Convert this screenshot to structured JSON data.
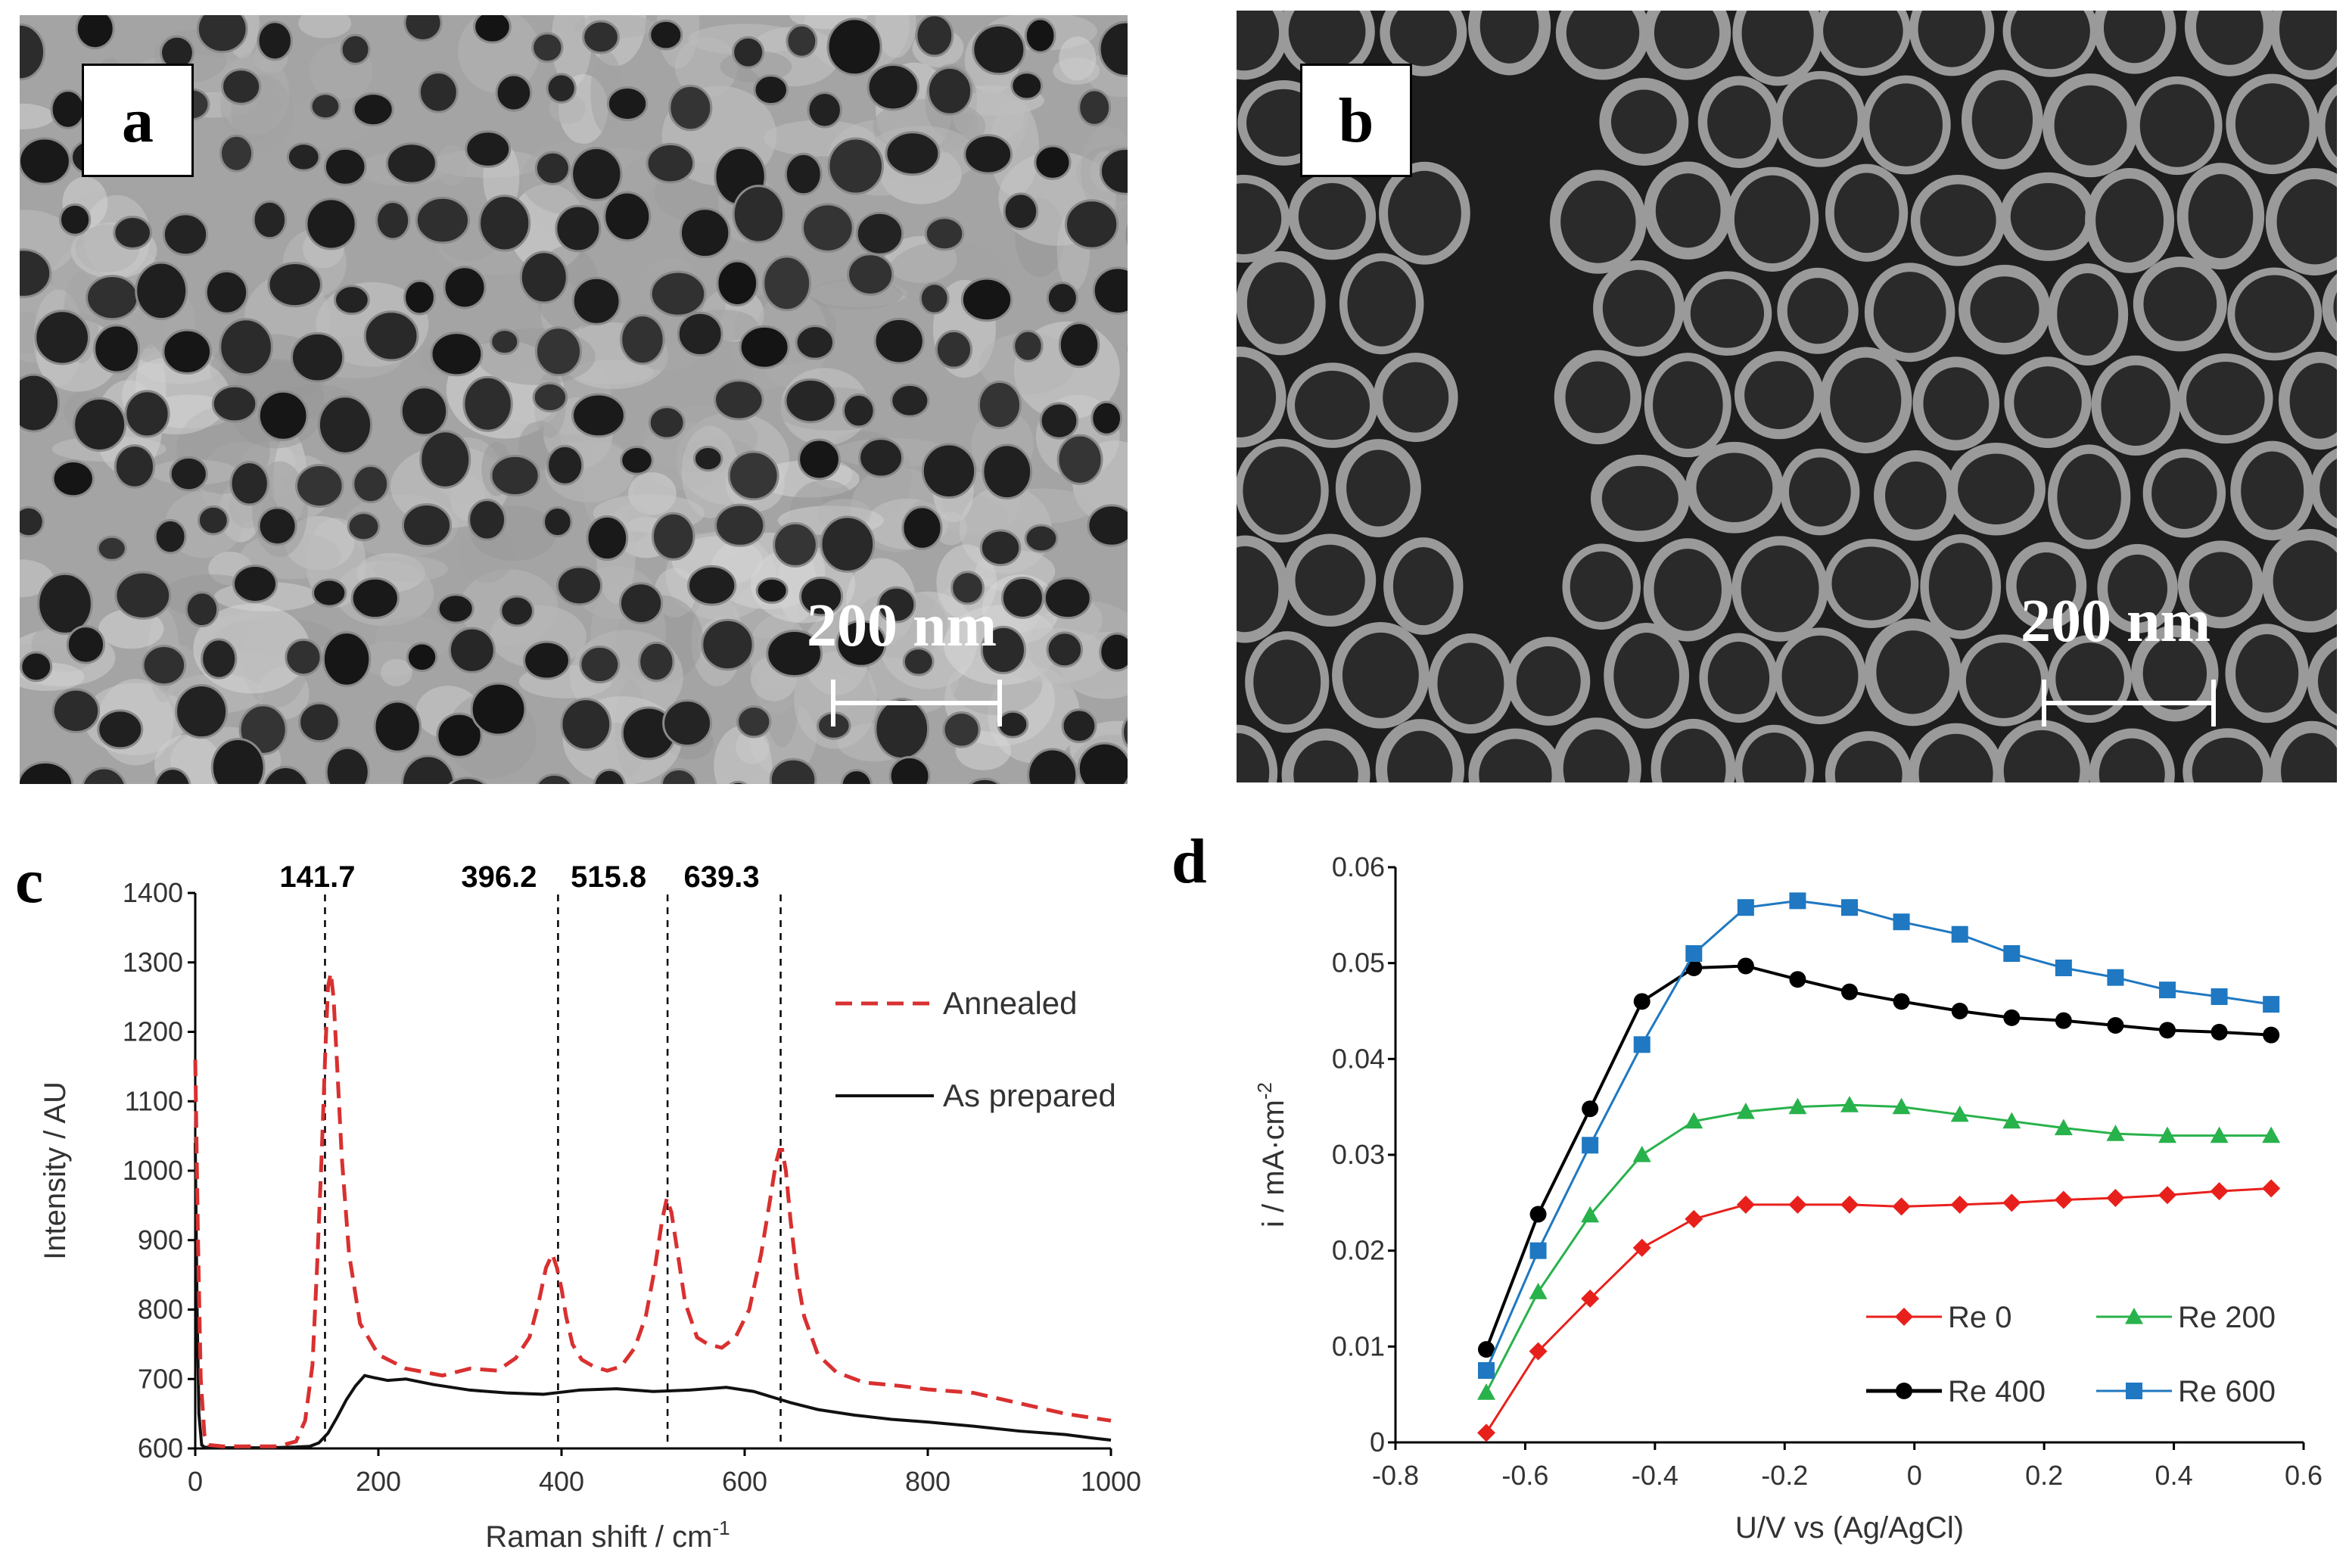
{
  "panels": {
    "a": {
      "label": "a",
      "scale_bar": "200 nm"
    },
    "b": {
      "label": "b",
      "scale_bar": "200 nm"
    },
    "c": {
      "label": "c"
    },
    "d": {
      "label": "d"
    }
  },
  "colors": {
    "annealed": "#d93030",
    "as_prepared": "#111111",
    "re0": "#e8201c",
    "re200": "#28b24b",
    "re400": "#000000",
    "re600": "#1f78c1"
  },
  "chart_data": [
    {
      "type": "line",
      "panel": "c",
      "xlabel": "Raman shift / cm",
      "xlabel_sup": "-1",
      "ylabel": "Intensity  / AU",
      "xlim": [
        0,
        1000
      ],
      "ylim": [
        600,
        1400
      ],
      "xticks": [
        0,
        200,
        400,
        600,
        800,
        1000
      ],
      "yticks": [
        600,
        700,
        800,
        900,
        1000,
        1100,
        1200,
        1300,
        1400
      ],
      "peak_lines": [
        141.7,
        396.2,
        515.8,
        639.3
      ],
      "peak_labels": [
        "141.7",
        "396.2",
        "515.8",
        "639.3"
      ],
      "legend": {
        "position": "top-right"
      },
      "series": [
        {
          "name": "Annealed",
          "style": "dashed",
          "x": [
            0,
            3,
            6,
            10,
            15,
            30,
            60,
            90,
            110,
            120,
            128,
            133,
            138,
            142,
            145,
            148,
            151,
            155,
            160,
            168,
            180,
            200,
            230,
            270,
            300,
            330,
            350,
            365,
            375,
            383,
            390,
            395,
            400,
            405,
            412,
            422,
            435,
            450,
            465,
            480,
            492,
            502,
            510,
            515,
            520,
            527,
            535,
            548,
            560,
            575,
            590,
            605,
            618,
            628,
            634,
            638,
            641,
            645,
            650,
            657,
            665,
            680,
            700,
            730,
            770,
            800,
            850,
            900,
            950,
            1000
          ],
          "y": [
            1160,
            900,
            700,
            620,
            605,
            603,
            603,
            603,
            610,
            640,
            720,
            860,
            1020,
            1170,
            1265,
            1285,
            1250,
            1150,
            1020,
            880,
            780,
            735,
            715,
            705,
            715,
            712,
            730,
            760,
            810,
            860,
            880,
            860,
            830,
            790,
            750,
            728,
            718,
            712,
            718,
            745,
            790,
            860,
            930,
            960,
            940,
            880,
            810,
            760,
            750,
            745,
            760,
            800,
            880,
            960,
            1010,
            1030,
            1030,
            1000,
            930,
            850,
            790,
            735,
            710,
            695,
            690,
            685,
            680,
            665,
            650,
            640
          ]
        },
        {
          "name": "As prepared",
          "style": "solid",
          "x": [
            0,
            2,
            4,
            7,
            10,
            15,
            25,
            50,
            80,
            110,
            125,
            135,
            145,
            155,
            165,
            175,
            185,
            195,
            210,
            230,
            260,
            300,
            340,
            380,
            420,
            460,
            500,
            540,
            580,
            610,
            630,
            650,
            680,
            720,
            760,
            800,
            850,
            900,
            950,
            980,
            1000
          ],
          "y": [
            1040,
            800,
            650,
            605,
            602,
            601,
            601,
            601,
            601,
            602,
            603,
            608,
            622,
            645,
            670,
            690,
            705,
            702,
            698,
            700,
            692,
            684,
            680,
            678,
            684,
            686,
            682,
            684,
            688,
            682,
            674,
            666,
            656,
            648,
            642,
            638,
            632,
            625,
            620,
            615,
            612
          ]
        }
      ]
    },
    {
      "type": "line",
      "panel": "d",
      "xlabel": "U/V vs (Ag/AgCl)",
      "ylabel": "i / mA·cm",
      "ylabel_sup": "-2",
      "xlim": [
        -0.8,
        0.6
      ],
      "ylim": [
        0,
        0.06
      ],
      "xticks": [
        "-0.8",
        "-0.6",
        "-0.4",
        "-0.2",
        "0",
        "0.2",
        "0.4",
        "0.6"
      ],
      "yticks": [
        "0",
        "0.01",
        "0.02",
        "0.03",
        "0.04",
        "0.05",
        "0.06"
      ],
      "x": [
        -0.66,
        -0.58,
        -0.5,
        -0.42,
        -0.34,
        -0.26,
        -0.18,
        -0.1,
        -0.02,
        0.07,
        0.15,
        0.23,
        0.31,
        0.39,
        0.47,
        0.55
      ],
      "legend": {
        "position": "bottom-right"
      },
      "series": [
        {
          "name": "Re 0",
          "marker": "diamond",
          "values": [
            0.001,
            0.0095,
            0.015,
            0.0203,
            0.0233,
            0.0248,
            0.0248,
            0.0248,
            0.0246,
            0.0248,
            0.025,
            0.0253,
            0.0255,
            0.0258,
            0.0262,
            0.0265
          ]
        },
        {
          "name": "Re 200",
          "marker": "triangle",
          "values": [
            0.0052,
            0.0157,
            0.0237,
            0.03,
            0.0335,
            0.0345,
            0.035,
            0.0352,
            0.035,
            0.0342,
            0.0335,
            0.0328,
            0.0322,
            0.032,
            0.032,
            0.032
          ]
        },
        {
          "name": "Re 400",
          "marker": "circle",
          "values": [
            0.0097,
            0.0238,
            0.0348,
            0.046,
            0.0495,
            0.0497,
            0.0483,
            0.047,
            0.046,
            0.045,
            0.0443,
            0.044,
            0.0435,
            0.043,
            0.0428,
            0.0425
          ]
        },
        {
          "name": "Re 600",
          "marker": "square",
          "values": [
            0.0075,
            0.02,
            0.031,
            0.0415,
            0.051,
            0.0558,
            0.0565,
            0.0558,
            0.0543,
            0.053,
            0.051,
            0.0495,
            0.0485,
            0.0472,
            0.0465,
            0.0457
          ]
        }
      ]
    }
  ]
}
